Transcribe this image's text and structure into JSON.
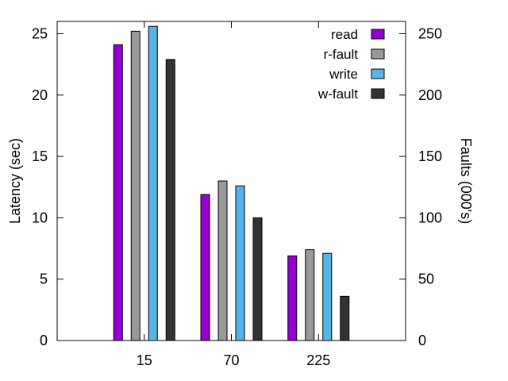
{
  "chart_data": {
    "type": "bar",
    "title": "",
    "categories": [
      "15",
      "70",
      "225"
    ],
    "ylabel_left": "Latency (sec)",
    "ylabel_right": "Faults (000's)",
    "ylim_left": [
      0,
      26
    ],
    "ylim_right": [
      0,
      260
    ],
    "yticks_left": [
      0,
      5,
      10,
      15,
      20,
      25
    ],
    "yticks_right": [
      0,
      50,
      100,
      150,
      200,
      250
    ],
    "legend_position": "top-right",
    "grid": false,
    "series": [
      {
        "name": "read",
        "axis": "left",
        "color": "#9400d3",
        "values": [
          24.1,
          11.9,
          6.9
        ]
      },
      {
        "name": "r-fault",
        "axis": "right",
        "color": "#999999",
        "values": [
          252,
          130,
          74
        ]
      },
      {
        "name": "write",
        "axis": "left",
        "color": "#56b4e9",
        "values": [
          25.6,
          12.6,
          7.1
        ]
      },
      {
        "name": "w-fault",
        "axis": "right",
        "color": "#333333",
        "values": [
          229,
          100,
          36
        ]
      }
    ]
  }
}
